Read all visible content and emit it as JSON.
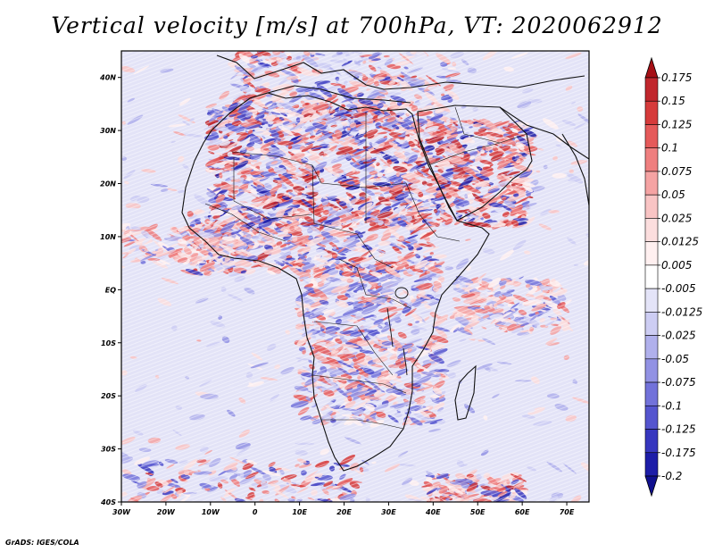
{
  "title": "Vertical velocity [m/s] at 700hPa, VT: 2020062912",
  "credit": "GrADS: IGES/COLA",
  "chart_data": {
    "type": "heatmap",
    "title": "Vertical velocity [m/s] at 700hPa, VT: 2020062912",
    "variable": "Vertical velocity",
    "units": "m/s",
    "level": "700hPa",
    "valid_time": "2020062912",
    "lon_range": [
      -30,
      75
    ],
    "lat_range": [
      -40,
      45
    ],
    "x_ticks": [
      {
        "value": -30,
        "label": "30W"
      },
      {
        "value": -20,
        "label": "20W"
      },
      {
        "value": -10,
        "label": "10W"
      },
      {
        "value": 0,
        "label": "0"
      },
      {
        "value": 10,
        "label": "10E"
      },
      {
        "value": 20,
        "label": "20E"
      },
      {
        "value": 30,
        "label": "30E"
      },
      {
        "value": 40,
        "label": "40E"
      },
      {
        "value": 50,
        "label": "50E"
      },
      {
        "value": 60,
        "label": "60E"
      },
      {
        "value": 70,
        "label": "70E"
      }
    ],
    "y_ticks": [
      {
        "value": 40,
        "label": "40N"
      },
      {
        "value": 30,
        "label": "30N"
      },
      {
        "value": 20,
        "label": "20N"
      },
      {
        "value": 10,
        "label": "10N"
      },
      {
        "value": 0,
        "label": "EQ"
      },
      {
        "value": -10,
        "label": "10S"
      },
      {
        "value": -20,
        "label": "20S"
      },
      {
        "value": -30,
        "label": "30S"
      },
      {
        "value": -40,
        "label": "40S"
      }
    ],
    "legend": {
      "labels": [
        "0.175",
        "0.15",
        "0.125",
        "0.1",
        "0.075",
        "0.05",
        "0.025",
        "0.0125",
        "0.005",
        "-0.005",
        "-0.0125",
        "-0.025",
        "-0.05",
        "-0.075",
        "-0.1",
        "-0.125",
        "-0.175",
        "-0.2"
      ],
      "colors": [
        "#a50f15",
        "#c1272d",
        "#d63b3b",
        "#e55a5a",
        "#ef7f7f",
        "#f5a3a3",
        "#f9c4c4",
        "#fcdede",
        "#fff0f0",
        "#ffffff",
        "#e4e4f8",
        "#cdcdf3",
        "#b0b0ec",
        "#9292e4",
        "#7272da",
        "#5555cf",
        "#3737bf",
        "#1d1da8",
        "#10108f"
      ]
    },
    "features": [
      {
        "region": "Sahara and Sahel",
        "pattern": "strong alternating ascent/descent"
      },
      {
        "region": "Arabian Peninsula",
        "pattern": "strong ascent (red) bands"
      },
      {
        "region": "Equatorial Atlantic",
        "pattern": "weak mixed red/blue streaks"
      },
      {
        "region": "Southern Ocean",
        "pattern": "streaks of strong ascent near 35-40S"
      }
    ]
  }
}
